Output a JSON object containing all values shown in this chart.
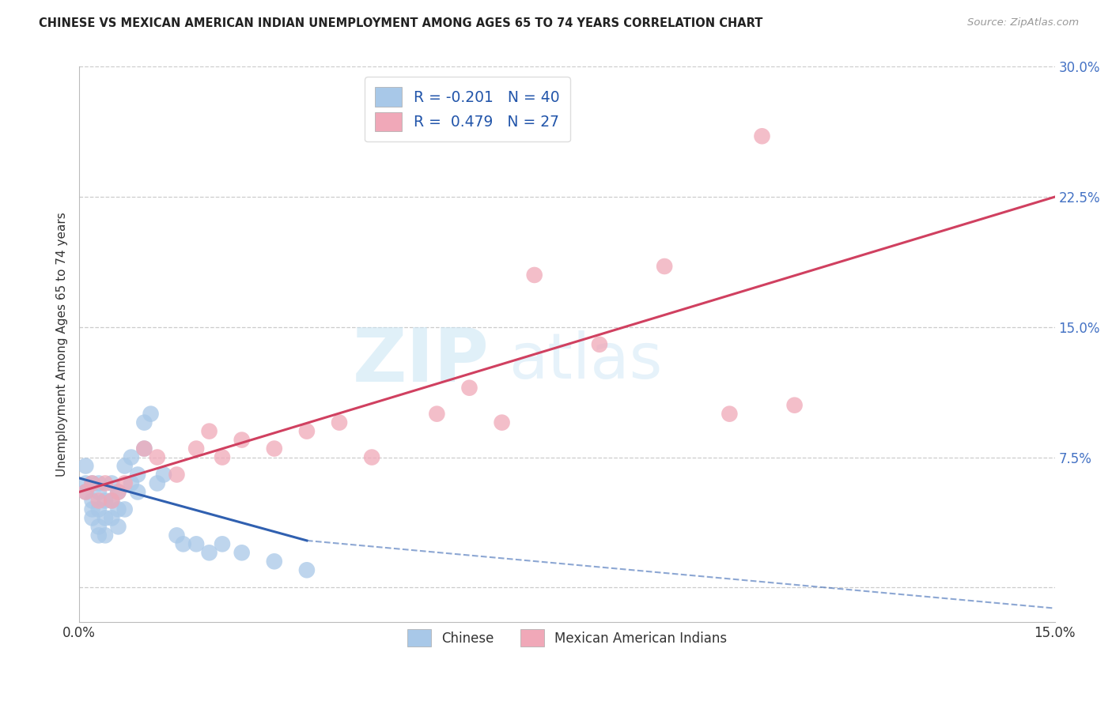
{
  "title": "CHINESE VS MEXICAN AMERICAN INDIAN UNEMPLOYMENT AMONG AGES 65 TO 74 YEARS CORRELATION CHART",
  "source": "Source: ZipAtlas.com",
  "ylabel": "Unemployment Among Ages 65 to 74 years",
  "xlim": [
    0.0,
    0.15
  ],
  "ylim": [
    -0.02,
    0.3
  ],
  "xticks": [
    0.0,
    0.025,
    0.05,
    0.075,
    0.1,
    0.125,
    0.15
  ],
  "yticks": [
    0.0,
    0.075,
    0.15,
    0.225,
    0.3
  ],
  "legend_r_chinese": "-0.201",
  "legend_n_chinese": "40",
  "legend_r_mexican": "0.479",
  "legend_n_mexican": "27",
  "chinese_color": "#a8c8e8",
  "mexican_color": "#f0a8b8",
  "trend_chinese_color": "#3060b0",
  "trend_mexican_color": "#d04060",
  "chinese_x": [
    0.001,
    0.001,
    0.001,
    0.002,
    0.002,
    0.002,
    0.002,
    0.003,
    0.003,
    0.003,
    0.003,
    0.003,
    0.004,
    0.004,
    0.004,
    0.005,
    0.005,
    0.005,
    0.006,
    0.006,
    0.006,
    0.007,
    0.007,
    0.008,
    0.008,
    0.009,
    0.009,
    0.01,
    0.01,
    0.011,
    0.012,
    0.013,
    0.015,
    0.016,
    0.018,
    0.02,
    0.022,
    0.025,
    0.03,
    0.035
  ],
  "chinese_y": [
    0.06,
    0.055,
    0.07,
    0.04,
    0.05,
    0.06,
    0.045,
    0.055,
    0.06,
    0.03,
    0.035,
    0.045,
    0.05,
    0.03,
    0.04,
    0.04,
    0.05,
    0.06,
    0.045,
    0.055,
    0.035,
    0.07,
    0.045,
    0.06,
    0.075,
    0.055,
    0.065,
    0.095,
    0.08,
    0.1,
    0.06,
    0.065,
    0.03,
    0.025,
    0.025,
    0.02,
    0.025,
    0.02,
    0.015,
    0.01
  ],
  "mexican_x": [
    0.001,
    0.002,
    0.003,
    0.004,
    0.005,
    0.006,
    0.007,
    0.01,
    0.012,
    0.015,
    0.018,
    0.02,
    0.022,
    0.025,
    0.03,
    0.035,
    0.04,
    0.045,
    0.055,
    0.06,
    0.065,
    0.07,
    0.08,
    0.09,
    0.1,
    0.105,
    0.11
  ],
  "mexican_y": [
    0.055,
    0.06,
    0.05,
    0.06,
    0.05,
    0.055,
    0.06,
    0.08,
    0.075,
    0.065,
    0.08,
    0.09,
    0.075,
    0.085,
    0.08,
    0.09,
    0.095,
    0.075,
    0.1,
    0.115,
    0.095,
    0.18,
    0.14,
    0.185,
    0.1,
    0.26,
    0.105
  ],
  "trend_chinese_x0": 0.0,
  "trend_chinese_y0": 0.063,
  "trend_chinese_x1": 0.035,
  "trend_chinese_y1": 0.027,
  "trend_chinese_dash_x1": 0.15,
  "trend_chinese_dash_y1": -0.012,
  "trend_mexican_x0": 0.0,
  "trend_mexican_y0": 0.055,
  "trend_mexican_x1": 0.15,
  "trend_mexican_y1": 0.225
}
